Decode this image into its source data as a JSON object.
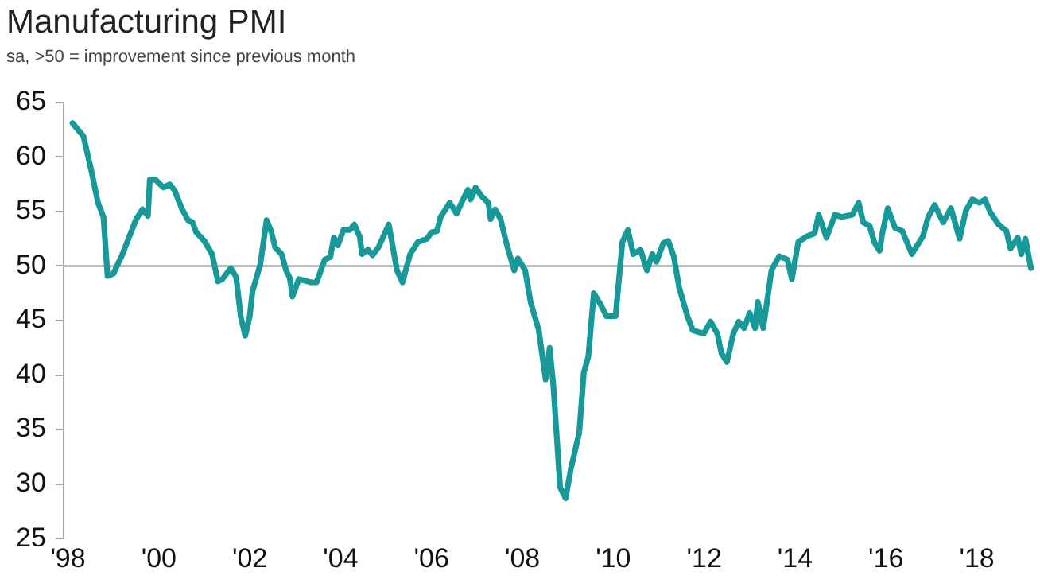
{
  "chart_data": {
    "type": "line",
    "title": "Manufacturing PMI",
    "subtitle": "sa, >50 = improvement since previous month",
    "series": [
      {
        "color": "#17999a",
        "x": [
          1998.1,
          1998.34,
          1998.5,
          1998.66,
          1998.78,
          1998.87,
          1999.0,
          1999.2,
          1999.5,
          1999.64,
          1999.76,
          1999.8,
          1999.93,
          2000.1,
          2000.24,
          2000.35,
          2000.5,
          2000.64,
          2000.74,
          2000.82,
          2001.0,
          2001.17,
          2001.3,
          2001.4,
          2001.58,
          2001.7,
          2001.8,
          2001.9,
          2002.0,
          2002.06,
          2002.23,
          2002.37,
          2002.47,
          2002.56,
          2002.7,
          2002.8,
          2002.88,
          2002.94,
          2003.08,
          2003.35,
          2003.47,
          2003.65,
          2003.77,
          2003.85,
          2003.94,
          2004.06,
          2004.2,
          2004.3,
          2004.42,
          2004.47,
          2004.6,
          2004.7,
          2004.83,
          2005.06,
          2005.24,
          2005.36,
          2005.53,
          2005.7,
          2005.9,
          2006.0,
          2006.12,
          2006.2,
          2006.4,
          2006.55,
          2006.66,
          2006.8,
          2006.86,
          2006.97,
          2007.1,
          2007.25,
          2007.3,
          2007.4,
          2007.52,
          2007.64,
          2007.82,
          2007.9,
          2008.06,
          2008.18,
          2008.36,
          2008.51,
          2008.6,
          2008.68,
          2008.83,
          2008.95,
          2009.07,
          2009.25,
          2009.35,
          2009.45,
          2009.57,
          2009.73,
          2009.85,
          2010.05,
          2010.2,
          2010.32,
          2010.44,
          2010.6,
          2010.74,
          2010.86,
          2010.95,
          2011.1,
          2011.21,
          2011.33,
          2011.45,
          2011.63,
          2011.75,
          2011.99,
          2012.14,
          2012.29,
          2012.38,
          2012.5,
          2012.64,
          2012.76,
          2012.88,
          2013.0,
          2013.12,
          2013.18,
          2013.3,
          2013.48,
          2013.65,
          2013.83,
          2013.93,
          2014.07,
          2014.25,
          2014.43,
          2014.52,
          2014.69,
          2014.88,
          2015.02,
          2015.26,
          2015.4,
          2015.5,
          2015.64,
          2015.74,
          2015.86,
          2015.92,
          2016.04,
          2016.2,
          2016.36,
          2016.57,
          2016.81,
          2016.93,
          2017.07,
          2017.26,
          2017.43,
          2017.62,
          2017.76,
          2017.9,
          2018.06,
          2018.18,
          2018.3,
          2018.48,
          2018.65,
          2018.74,
          2018.9,
          2018.98,
          2019.07,
          2019.19
        ],
        "values": [
          63.1,
          61.9,
          59.0,
          55.8,
          54.5,
          49.1,
          49.3,
          51.1,
          54.3,
          55.2,
          54.6,
          57.9,
          57.9,
          57.2,
          57.5,
          56.9,
          55.3,
          54.2,
          54.0,
          53.1,
          52.3,
          51.1,
          48.6,
          48.8,
          49.8,
          49.0,
          45.4,
          43.6,
          45.4,
          47.7,
          50.1,
          54.2,
          53.2,
          51.7,
          51.1,
          49.6,
          48.9,
          47.2,
          48.8,
          48.5,
          48.5,
          50.6,
          50.8,
          52.6,
          51.9,
          53.3,
          53.3,
          53.8,
          52.7,
          51.1,
          51.5,
          51.0,
          51.7,
          53.8,
          49.6,
          48.5,
          51.1,
          52.2,
          52.5,
          53.1,
          53.2,
          54.5,
          55.8,
          54.8,
          55.8,
          57.0,
          56.1,
          57.2,
          56.4,
          55.8,
          54.3,
          55.2,
          54.3,
          52.2,
          49.6,
          50.7,
          49.6,
          46.7,
          44.1,
          39.6,
          42.5,
          39.1,
          29.7,
          28.7,
          31.5,
          34.7,
          40.2,
          41.7,
          47.5,
          46.4,
          45.4,
          45.4,
          52.2,
          53.3,
          51.1,
          51.5,
          49.6,
          51.1,
          50.4,
          52.1,
          52.3,
          50.9,
          48.0,
          45.4,
          44.1,
          43.8,
          44.9,
          43.8,
          42.0,
          41.2,
          43.8,
          44.9,
          44.3,
          45.7,
          44.3,
          46.7,
          44.3,
          49.6,
          50.9,
          50.6,
          48.8,
          52.2,
          52.7,
          53.0,
          54.7,
          52.6,
          54.7,
          54.5,
          54.7,
          55.8,
          54.0,
          53.7,
          52.2,
          51.4,
          53.0,
          55.3,
          53.5,
          53.2,
          51.1,
          52.7,
          54.5,
          55.6,
          54.0,
          55.3,
          52.5,
          55.1,
          56.1,
          55.8,
          56.1,
          54.9,
          53.8,
          53.2,
          51.6,
          52.6,
          51.1,
          52.5,
          49.8
        ]
      }
    ],
    "xlim": [
      1997.9,
      2019.25
    ],
    "xticks": [
      {
        "value": 1998,
        "label": "'98"
      },
      {
        "value": 2000,
        "label": "'00"
      },
      {
        "value": 2002,
        "label": "'02"
      },
      {
        "value": 2004,
        "label": "'04"
      },
      {
        "value": 2006,
        "label": "'06"
      },
      {
        "value": 2008,
        "label": "'08"
      },
      {
        "value": 2010,
        "label": "'10"
      },
      {
        "value": 2012,
        "label": "'12"
      },
      {
        "value": 2014,
        "label": "'14"
      },
      {
        "value": 2016,
        "label": "'16"
      },
      {
        "value": 2018,
        "label": "'18"
      }
    ],
    "ylim": [
      25,
      65
    ],
    "yticks": [
      25,
      30,
      35,
      40,
      45,
      50,
      55,
      60,
      65
    ],
    "ref_lines": [
      {
        "axis": "y",
        "value": 50,
        "color": "#a6a6a6"
      }
    ],
    "grid": false,
    "legend": false,
    "marker": "none",
    "line_style": "solid"
  }
}
